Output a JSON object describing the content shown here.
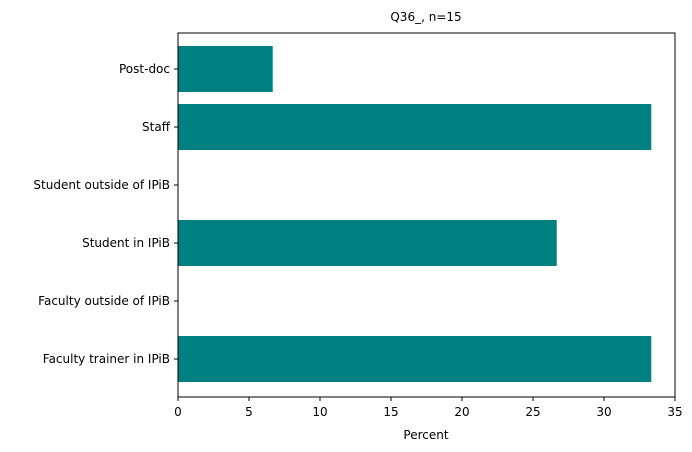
{
  "chart_data": {
    "type": "bar",
    "orientation": "horizontal",
    "title": "Q36_, n=15",
    "xlabel": "Percent",
    "ylabel": "",
    "categories": [
      "Faculty trainer in IPiB",
      "Faculty outside of IPiB",
      "Student in IPiB",
      "Student outside of IPiB",
      "Staff",
      "Post-doc"
    ],
    "values": [
      33.33,
      0,
      26.67,
      0,
      33.33,
      6.67
    ],
    "xlim": [
      0,
      35
    ],
    "xticks": [
      "0",
      "5",
      "10",
      "15",
      "20",
      "25",
      "30",
      "35"
    ],
    "grid": false,
    "legend": false,
    "bar_color": "#008080"
  }
}
